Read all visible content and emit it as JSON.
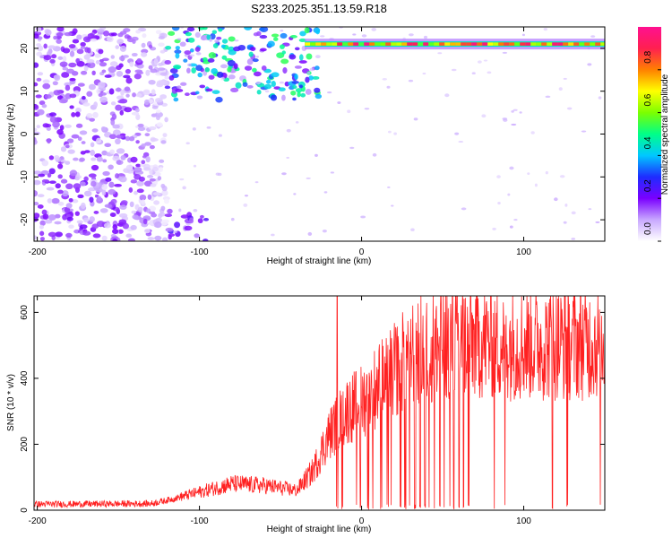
{
  "title": "S233.2025.351.13.59.R18",
  "chart_data": [
    {
      "type": "heatmap",
      "xlabel": "Height of straight line (km)",
      "ylabel": "Frequency (Hz)",
      "xlim": [
        -202,
        150
      ],
      "ylim": [
        -25,
        25
      ],
      "xticks": [
        -200,
        -100,
        0,
        100
      ],
      "yticks": [
        20,
        10,
        0,
        -10,
        -20
      ],
      "colorbar": {
        "label": "Normalized spectral amplitude",
        "range": [
          0,
          1
        ],
        "ticks": [
          "0.0",
          "0.2",
          "0.4",
          "0.6",
          "0.8"
        ],
        "tick_values": [
          0,
          0.2,
          0.4,
          0.6,
          0.8
        ],
        "colors": [
          "#ffffff",
          "#c8a8ff",
          "#7a00ff",
          "#1e2cff",
          "#00c8ff",
          "#00ff88",
          "#7cff00",
          "#ffff00",
          "#ff8000",
          "#ff2050",
          "#ff1090"
        ]
      },
      "carrier": {
        "frequency": 21,
        "x_start": -35,
        "x_end": 150
      },
      "regions": [
        {
          "name": "noise",
          "x": [
            -202,
            -120
          ],
          "y": [
            -25,
            25
          ],
          "level": 0.12
        },
        {
          "name": "upper-cluster",
          "x": [
            -120,
            -25
          ],
          "y": [
            8,
            25
          ],
          "level": 0.3
        },
        {
          "name": "lower-cluster",
          "x": [
            -120,
            -95
          ],
          "y": [
            -25,
            -18
          ],
          "level": 0.15
        }
      ]
    },
    {
      "type": "line",
      "xlabel": "Height of straight line (km)",
      "ylabel": "SNR (10 * v/v)",
      "xlim": [
        -202,
        150
      ],
      "ylim": [
        0,
        650
      ],
      "xticks": [
        -200,
        -100,
        0,
        100
      ],
      "yticks": [
        0,
        200,
        400,
        600
      ],
      "color": "#ff2020",
      "profile": {
        "x": [
          -202,
          -130,
          -120,
          -100,
          -80,
          -60,
          -40,
          -30,
          -20,
          -10,
          0,
          10,
          20,
          30,
          50,
          80,
          100,
          150
        ],
        "y": [
          18,
          20,
          30,
          55,
          80,
          75,
          60,
          120,
          230,
          300,
          330,
          380,
          420,
          480,
          510,
          510,
          505,
          510
        ]
      },
      "spike": {
        "x": -15,
        "y": 650
      },
      "dropouts": [
        -15,
        -12,
        -3,
        -1,
        4,
        7,
        12,
        16,
        18,
        21,
        24,
        27,
        30,
        33,
        36,
        39,
        42,
        45,
        48,
        51,
        54,
        57,
        60,
        63,
        66,
        82,
        88,
        118,
        127,
        147
      ]
    }
  ]
}
